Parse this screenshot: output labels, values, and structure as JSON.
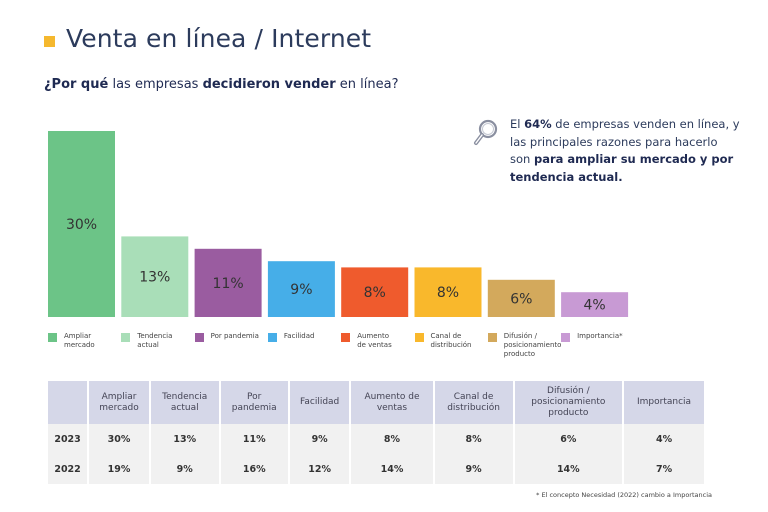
{
  "header": {
    "title": "Venta en línea / Internet",
    "accent_color": "#f5b82e"
  },
  "subtitle": {
    "parts": [
      {
        "text": "¿Por qué",
        "bold": true
      },
      {
        "text": " las empresas ",
        "bold": false
      },
      {
        "text": "decidieron vender",
        "bold": true
      },
      {
        "text": " en línea?",
        "bold": false
      }
    ]
  },
  "callout": {
    "icon": "magnifier-icon",
    "parts": [
      {
        "text": "El ",
        "bold": false
      },
      {
        "text": "64%",
        "bold": true
      },
      {
        "text": " de empresas venden en línea, y las principales razones para hacerlo son ",
        "bold": false
      },
      {
        "text": "para ampliar su mercado y por tendencia actual.",
        "bold": true
      }
    ]
  },
  "chart_data": {
    "type": "bar",
    "title": "¿Por qué las empresas decidieron vender en línea?",
    "xlabel": "",
    "ylabel": "",
    "ylim": [
      0,
      30
    ],
    "grid": false,
    "legend_position": "bottom",
    "categories": [
      "Ampliar mercado",
      "Tendencia actual",
      "Por pandemia",
      "Facilidad",
      "Aumento de ventas",
      "Canal de distribución",
      "Difusión / posicionamiento producto",
      "Importancia*"
    ],
    "legend_labels": [
      "Ampliar\nmercado",
      "Tendencia\nactual",
      "Por pandemia",
      "Facilidad",
      "Aumento\nde ventas",
      "Canal de\ndistribución",
      "Difusión /\nposicionamiento\nproducto",
      "Importancia*"
    ],
    "values": [
      30,
      13,
      11,
      9,
      8,
      8,
      6,
      4
    ],
    "data_labels": [
      "30%",
      "13%",
      "11%",
      "9%",
      "8%",
      "8%",
      "6%",
      "4%"
    ],
    "colors": [
      "#6cc487",
      "#a9deb8",
      "#9a5ca0",
      "#46aee8",
      "#ef5b2d",
      "#f9b82c",
      "#d3a95c",
      "#c89ad4"
    ],
    "series": [
      {
        "name": "2023",
        "values": [
          30,
          13,
          11,
          9,
          8,
          8,
          6,
          4
        ]
      }
    ]
  },
  "table": {
    "headers": [
      "",
      "Ampliar\nmercado",
      "Tendencia\nactual",
      "Por\npandemia",
      "Facilidad",
      "Aumento de\nventas",
      "Canal de\ndistribución",
      "Difusión /\nposicionamiento\nproducto",
      "Importancia"
    ],
    "rows": [
      [
        "2023",
        "30%",
        "13%",
        "11%",
        "9%",
        "8%",
        "8%",
        "6%",
        "4%"
      ],
      [
        "2022",
        "19%",
        "9%",
        "16%",
        "12%",
        "14%",
        "9%",
        "14%",
        "7%"
      ]
    ]
  },
  "footnote": "* El concepto Necesidad (2022) cambio a Importancia"
}
